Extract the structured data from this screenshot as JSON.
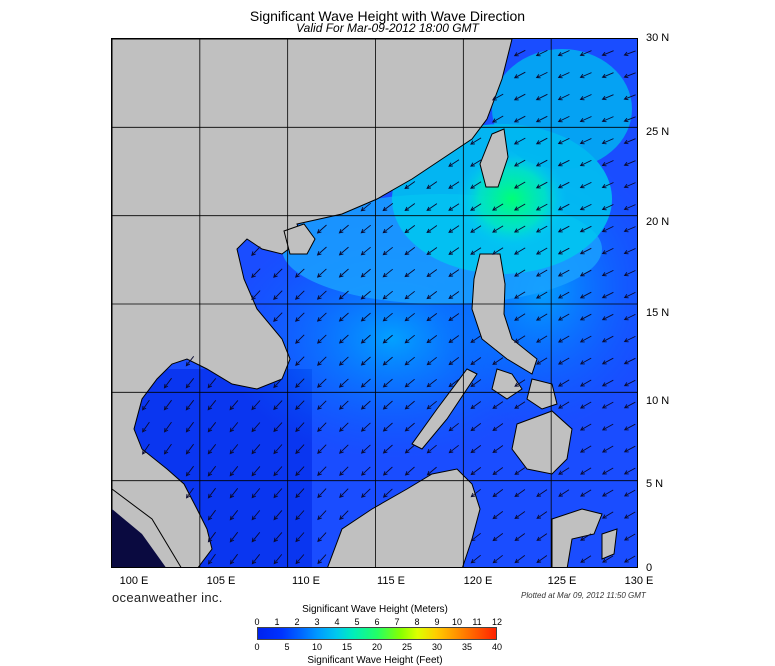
{
  "title": "Significant Wave Height with Wave Direction",
  "subtitle": "Valid For Mar-09-2012 18:00 GMT",
  "brand": "oceanweather inc.",
  "plotted_note": "Plotted at Mar 09, 2012 11:50 GMT",
  "lat_labels": [
    "30 N",
    "25 N",
    "20 N",
    "15 N",
    "10 N",
    "5 N",
    "0"
  ],
  "lon_labels": [
    "100 E",
    "105 E",
    "110 E",
    "115 E",
    "120 E",
    "125 E",
    "130 E"
  ],
  "colorbar": {
    "title_meters": "Significant Wave Height (Meters)",
    "title_feet": "Significant Wave Height (Feet)",
    "meter_ticks": [
      "0",
      "1",
      "2",
      "3",
      "4",
      "5",
      "6",
      "7",
      "8",
      "9",
      "10",
      "11",
      "12"
    ],
    "feet_ticks": [
      "0",
      "5",
      "10",
      "15",
      "20",
      "25",
      "30",
      "35",
      "40"
    ]
  },
  "colors": {
    "land": "#c0c0c0",
    "coast": "#000000",
    "sea_low": "#0033ff",
    "sea_mid": "#00aaff",
    "sea_high": "#00ff88",
    "grid": "#000000"
  },
  "map_extent": {
    "lon": [
      100,
      130
    ],
    "lat": [
      0,
      30
    ]
  },
  "dominant_wave_direction": "from northeast"
}
